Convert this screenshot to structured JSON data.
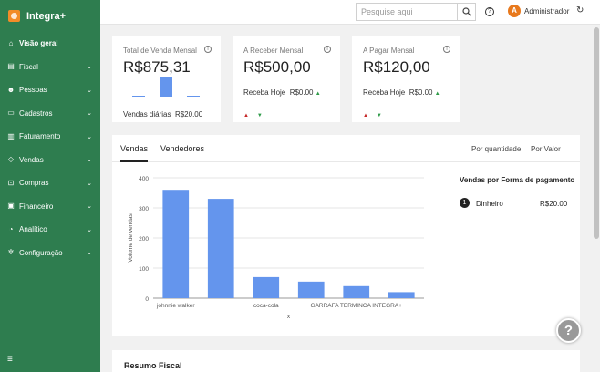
{
  "app": {
    "name": "Integra+"
  },
  "sidebar": {
    "items": [
      {
        "label": "Visão geral",
        "icon": "home-icon",
        "glyph": "⌂",
        "active": true,
        "chevron": false
      },
      {
        "label": "Fiscal",
        "icon": "document-icon",
        "glyph": "▤",
        "chevron": true
      },
      {
        "label": "Pessoas",
        "icon": "users-icon",
        "glyph": "☻",
        "chevron": true
      },
      {
        "label": "Cadastros",
        "icon": "folder-icon",
        "glyph": "▭",
        "chevron": true
      },
      {
        "label": "Faturamento",
        "icon": "invoice-icon",
        "glyph": "▥",
        "chevron": true
      },
      {
        "label": "Vendas",
        "icon": "tag-icon",
        "glyph": "◇",
        "chevron": true
      },
      {
        "label": "Compras",
        "icon": "cart-icon",
        "glyph": "⊡",
        "chevron": true
      },
      {
        "label": "Financeiro",
        "icon": "money-icon",
        "glyph": "▣",
        "chevron": true
      },
      {
        "label": "Analítico",
        "icon": "chart-icon",
        "glyph": "◔",
        "chevron": true
      },
      {
        "label": "Configuração",
        "icon": "gear-icon",
        "glyph": "✲",
        "chevron": true
      }
    ],
    "collapse_glyph": "≡"
  },
  "topbar": {
    "search_placeholder": "Pesquise aqui",
    "user_initial": "A",
    "user_name": "Administrador",
    "refresh_glyph": "↻",
    "help_glyph": "?"
  },
  "cards": [
    {
      "title": "Total de Venda Mensal",
      "value": "R$875,31",
      "sub_label": "Vendas diárias",
      "sub_value": "R$20.00",
      "mini_bars": [
        0.02,
        0.75,
        0.02
      ]
    },
    {
      "title": "A Receber Mensal",
      "value": "R$500,00",
      "sub_label": "Receba Hoje",
      "sub_value": "R$0.00"
    },
    {
      "title": "A Pagar Mensal",
      "value": "R$120,00",
      "sub_label": "Receba Hoje",
      "sub_value": "R$0.00"
    }
  ],
  "tabs": {
    "left": [
      "Vendas",
      "Vendedores"
    ],
    "right": [
      "Por quantidade",
      "Por Valor"
    ]
  },
  "chart_data": {
    "type": "bar",
    "categories": [
      "johnnie walker",
      "",
      "coca-cola",
      "",
      "GARRAFA TERMINCA INTEGRA+",
      ""
    ],
    "values": [
      360,
      330,
      70,
      55,
      40,
      20
    ],
    "xlabel": "x",
    "ylabel": "Volume de vendas",
    "ylim": [
      0,
      400
    ],
    "yticks": [
      0,
      100,
      200,
      300,
      400
    ],
    "color": "#6495ed",
    "grid": true
  },
  "payments": {
    "title": "Vendas por Forma de pagamento",
    "items": [
      {
        "rank": "1",
        "name": "Dinheiro",
        "value": "R$20.00"
      }
    ]
  },
  "fiscal": {
    "title": "Resumo Fiscal"
  },
  "help_float": "?"
}
